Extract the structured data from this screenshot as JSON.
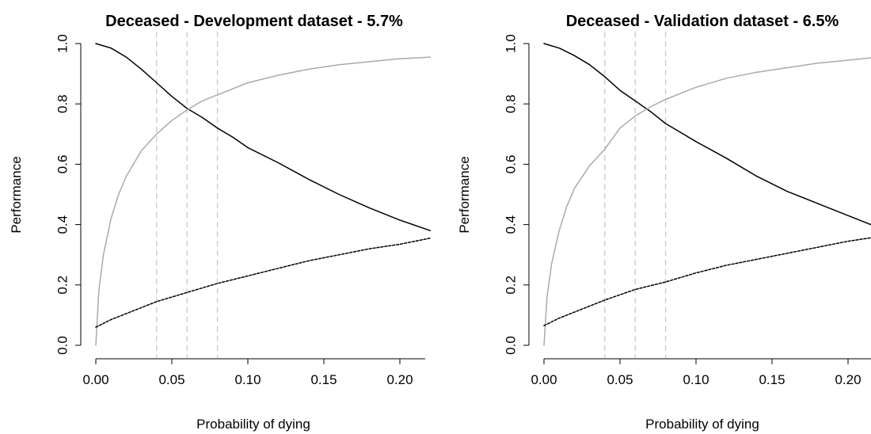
{
  "chart_data": [
    {
      "type": "line",
      "title": "Deceased - Development dataset - 5.7%",
      "xlabel": "Probability of dying",
      "ylabel": "Performance",
      "xlim": [
        0.0,
        0.22
      ],
      "ylim": [
        0.0,
        1.0
      ],
      "x_ticks": [
        "0.00",
        "0.05",
        "0.10",
        "0.15",
        "0.20"
      ],
      "y_ticks": [
        "0.0",
        "0.2",
        "0.4",
        "0.6",
        "0.8",
        "1.0"
      ],
      "grid": false,
      "legend": "none",
      "vlines": [
        0.04,
        0.06,
        0.08
      ],
      "series": [
        {
          "style": "solid",
          "color": "#000000",
          "x": [
            0.0,
            0.01,
            0.02,
            0.03,
            0.04,
            0.05,
            0.06,
            0.07,
            0.08,
            0.09,
            0.1,
            0.12,
            0.14,
            0.16,
            0.18,
            0.2,
            0.22
          ],
          "y": [
            1.0,
            0.985,
            0.955,
            0.915,
            0.87,
            0.825,
            0.785,
            0.755,
            0.72,
            0.69,
            0.655,
            0.605,
            0.55,
            0.5,
            0.455,
            0.415,
            0.38
          ]
        },
        {
          "style": "solid",
          "color": "#aaaaaa",
          "x": [
            0.0,
            0.002,
            0.005,
            0.01,
            0.015,
            0.02,
            0.03,
            0.04,
            0.05,
            0.06,
            0.07,
            0.08,
            0.1,
            0.12,
            0.14,
            0.16,
            0.18,
            0.2,
            0.22
          ],
          "y": [
            0.0,
            0.18,
            0.3,
            0.42,
            0.5,
            0.56,
            0.645,
            0.7,
            0.745,
            0.78,
            0.81,
            0.83,
            0.87,
            0.895,
            0.915,
            0.93,
            0.94,
            0.95,
            0.955
          ]
        },
        {
          "style": "dashed",
          "color": "#000000",
          "x": [
            0.0,
            0.01,
            0.02,
            0.03,
            0.04,
            0.06,
            0.08,
            0.1,
            0.12,
            0.14,
            0.16,
            0.18,
            0.2,
            0.22
          ],
          "y": [
            0.06,
            0.085,
            0.105,
            0.125,
            0.145,
            0.175,
            0.205,
            0.23,
            0.255,
            0.28,
            0.3,
            0.32,
            0.335,
            0.355
          ]
        }
      ]
    },
    {
      "type": "line",
      "title": "Deceased - Validation dataset - 6.5%",
      "xlabel": "Probability of dying",
      "ylabel": "Performance",
      "xlim": [
        0.0,
        0.22
      ],
      "ylim": [
        0.0,
        1.0
      ],
      "x_ticks": [
        "0.00",
        "0.05",
        "0.10",
        "0.15",
        "0.20"
      ],
      "y_ticks": [
        "0.0",
        "0.2",
        "0.4",
        "0.6",
        "0.8",
        "1.0"
      ],
      "grid": false,
      "legend": "none",
      "vlines": [
        0.04,
        0.06,
        0.08
      ],
      "series": [
        {
          "style": "solid",
          "color": "#000000",
          "x": [
            0.0,
            0.01,
            0.02,
            0.03,
            0.04,
            0.05,
            0.06,
            0.07,
            0.08,
            0.09,
            0.1,
            0.12,
            0.14,
            0.16,
            0.18,
            0.2,
            0.22
          ],
          "y": [
            1.0,
            0.985,
            0.96,
            0.93,
            0.89,
            0.845,
            0.81,
            0.775,
            0.735,
            0.705,
            0.675,
            0.62,
            0.56,
            0.51,
            0.47,
            0.43,
            0.39
          ]
        },
        {
          "style": "solid",
          "color": "#aaaaaa",
          "x": [
            0.0,
            0.002,
            0.005,
            0.01,
            0.015,
            0.02,
            0.03,
            0.04,
            0.05,
            0.06,
            0.07,
            0.08,
            0.1,
            0.12,
            0.14,
            0.16,
            0.18,
            0.2,
            0.22
          ],
          "y": [
            0.0,
            0.16,
            0.27,
            0.38,
            0.46,
            0.52,
            0.595,
            0.65,
            0.72,
            0.76,
            0.79,
            0.815,
            0.855,
            0.885,
            0.905,
            0.92,
            0.935,
            0.945,
            0.955
          ]
        },
        {
          "style": "dashed",
          "color": "#000000",
          "x": [
            0.0,
            0.01,
            0.02,
            0.03,
            0.04,
            0.06,
            0.08,
            0.1,
            0.12,
            0.14,
            0.16,
            0.18,
            0.2,
            0.22
          ],
          "y": [
            0.065,
            0.09,
            0.11,
            0.13,
            0.15,
            0.185,
            0.21,
            0.24,
            0.265,
            0.285,
            0.305,
            0.325,
            0.345,
            0.36
          ]
        }
      ]
    }
  ]
}
